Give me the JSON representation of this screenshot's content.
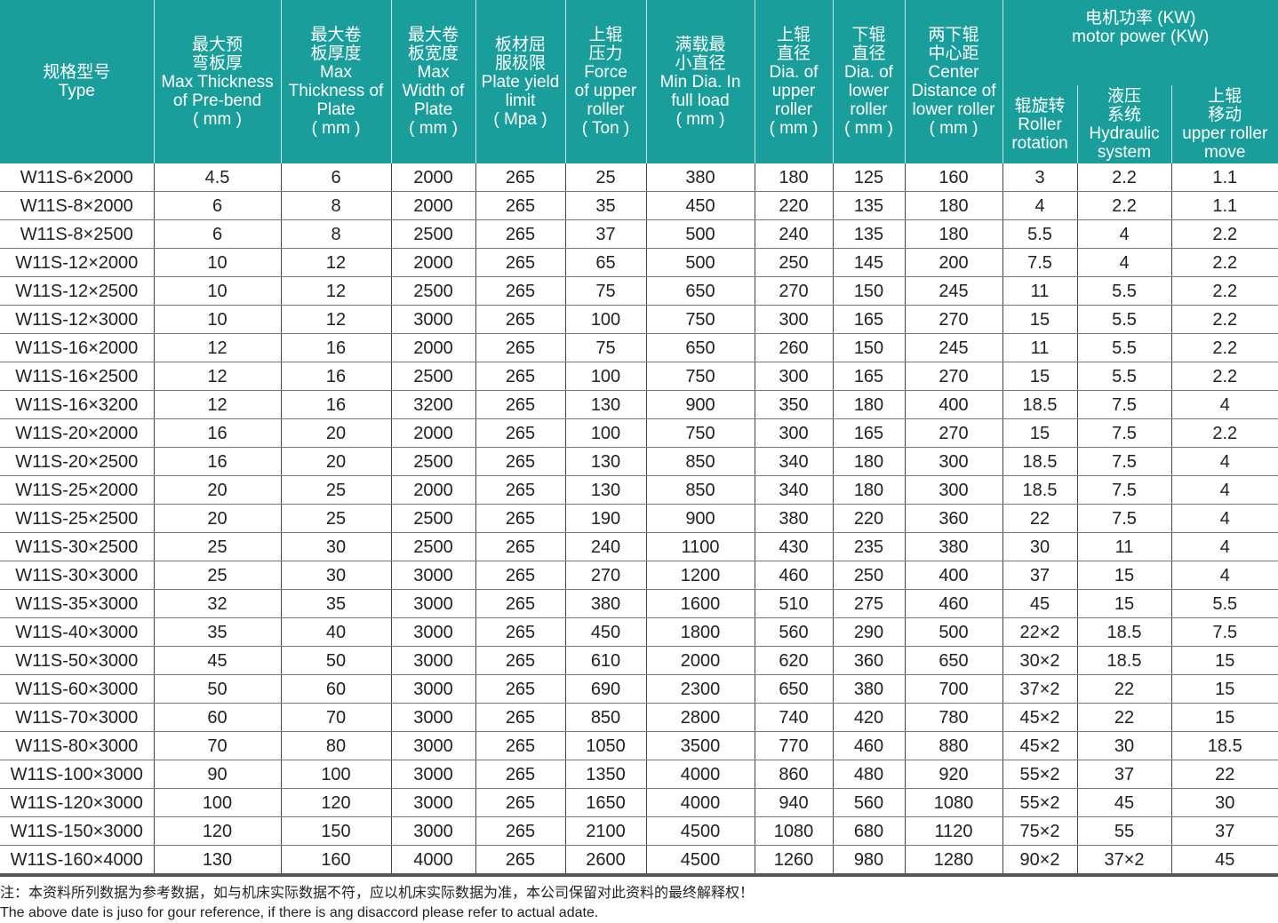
{
  "header_color": "#1a9e9b",
  "columns": {
    "type": [
      "规格型号",
      "Type"
    ],
    "prebend": [
      "最大预",
      "弯板厚",
      "Max Thickness",
      "of Pre-bend",
      "( mm )"
    ],
    "thickness": [
      "最大卷",
      "板厚度",
      "Max",
      "Thickness of",
      "Plate",
      "( mm )"
    ],
    "width": [
      "最大卷",
      "板宽度",
      "Max",
      "Width of",
      "Plate",
      "( mm )"
    ],
    "yield": [
      "板材屈",
      "服极限",
      "Plate yield",
      "limit",
      "( Mpa )"
    ],
    "force": [
      "上辊",
      "压力",
      "Force",
      "of upper",
      "roller",
      "( Ton )"
    ],
    "mindia": [
      "满载最",
      "小直径",
      "Min Dia. In",
      "full load",
      "( mm )"
    ],
    "upper_dia": [
      "上辊",
      "直径",
      "Dia. of",
      "upper",
      "roller",
      "( mm )"
    ],
    "lower_dia": [
      "下辊",
      "直径",
      "Dia. of",
      "lower",
      "roller",
      "( mm )"
    ],
    "center": [
      "两下辊",
      "中心距",
      "Center",
      "Distance of",
      "lower roller",
      "( mm )"
    ],
    "motor_group": [
      "电机功率  (KW)",
      "motor power (KW)"
    ],
    "roller_rotation": [
      "辊旋转",
      "Roller",
      "rotation"
    ],
    "hydraulic": [
      "液压",
      "系统",
      "Hydraulic",
      "system"
    ],
    "upper_move": [
      "上辊",
      "移动",
      "upper roller",
      "move"
    ]
  },
  "rows": [
    [
      "W11S-6×2000",
      "4.5",
      "6",
      "2000",
      "265",
      "25",
      "380",
      "180",
      "125",
      "160",
      "3",
      "2.2",
      "1.1"
    ],
    [
      "W11S-8×2000",
      "6",
      "8",
      "2000",
      "265",
      "35",
      "450",
      "220",
      "135",
      "180",
      "4",
      "2.2",
      "1.1"
    ],
    [
      "W11S-8×2500",
      "6",
      "8",
      "2500",
      "265",
      "37",
      "500",
      "240",
      "135",
      "180",
      "5.5",
      "4",
      "2.2"
    ],
    [
      "W11S-12×2000",
      "10",
      "12",
      "2000",
      "265",
      "65",
      "500",
      "250",
      "145",
      "200",
      "7.5",
      "4",
      "2.2"
    ],
    [
      "W11S-12×2500",
      "10",
      "12",
      "2500",
      "265",
      "75",
      "650",
      "270",
      "150",
      "245",
      "11",
      "5.5",
      "2.2"
    ],
    [
      "W11S-12×3000",
      "10",
      "12",
      "3000",
      "265",
      "100",
      "750",
      "300",
      "165",
      "270",
      "15",
      "5.5",
      "2.2"
    ],
    [
      "W11S-16×2000",
      "12",
      "16",
      "2000",
      "265",
      "75",
      "650",
      "260",
      "150",
      "245",
      "11",
      "5.5",
      "2.2"
    ],
    [
      "W11S-16×2500",
      "12",
      "16",
      "2500",
      "265",
      "100",
      "750",
      "300",
      "165",
      "270",
      "15",
      "5.5",
      "2.2"
    ],
    [
      "W11S-16×3200",
      "12",
      "16",
      "3200",
      "265",
      "130",
      "900",
      "350",
      "180",
      "400",
      "18.5",
      "7.5",
      "4"
    ],
    [
      "W11S-20×2000",
      "16",
      "20",
      "2000",
      "265",
      "100",
      "750",
      "300",
      "165",
      "270",
      "15",
      "7.5",
      "2.2"
    ],
    [
      "W11S-20×2500",
      "16",
      "20",
      "2500",
      "265",
      "130",
      "850",
      "340",
      "180",
      "300",
      "18.5",
      "7.5",
      "4"
    ],
    [
      "W11S-25×2000",
      "20",
      "25",
      "2000",
      "265",
      "130",
      "850",
      "340",
      "180",
      "300",
      "18.5",
      "7.5",
      "4"
    ],
    [
      "W11S-25×2500",
      "20",
      "25",
      "2500",
      "265",
      "190",
      "900",
      "380",
      "220",
      "360",
      "22",
      "7.5",
      "4"
    ],
    [
      "W11S-30×2500",
      "25",
      "30",
      "2500",
      "265",
      "240",
      "1100",
      "430",
      "235",
      "380",
      "30",
      "11",
      "4"
    ],
    [
      "W11S-30×3000",
      "25",
      "30",
      "3000",
      "265",
      "270",
      "1200",
      "460",
      "250",
      "400",
      "37",
      "15",
      "4"
    ],
    [
      "W11S-35×3000",
      "32",
      "35",
      "3000",
      "265",
      "380",
      "1600",
      "510",
      "275",
      "460",
      "45",
      "15",
      "5.5"
    ],
    [
      "W11S-40×3000",
      "35",
      "40",
      "3000",
      "265",
      "450",
      "1800",
      "560",
      "290",
      "500",
      "22×2",
      "18.5",
      "7.5"
    ],
    [
      "W11S-50×3000",
      "45",
      "50",
      "3000",
      "265",
      "610",
      "2000",
      "620",
      "360",
      "650",
      "30×2",
      "18.5",
      "15"
    ],
    [
      "W11S-60×3000",
      "50",
      "60",
      "3000",
      "265",
      "690",
      "2300",
      "650",
      "380",
      "700",
      "37×2",
      "22",
      "15"
    ],
    [
      "W11S-70×3000",
      "60",
      "70",
      "3000",
      "265",
      "850",
      "2800",
      "740",
      "420",
      "780",
      "45×2",
      "22",
      "15"
    ],
    [
      "W11S-80×3000",
      "70",
      "80",
      "3000",
      "265",
      "1050",
      "3500",
      "770",
      "460",
      "880",
      "45×2",
      "30",
      "18.5"
    ],
    [
      "W11S-100×3000",
      "90",
      "100",
      "3000",
      "265",
      "1350",
      "4000",
      "860",
      "480",
      "920",
      "55×2",
      "37",
      "22"
    ],
    [
      "W11S-120×3000",
      "100",
      "120",
      "3000",
      "265",
      "1650",
      "4000",
      "940",
      "560",
      "1080",
      "55×2",
      "45",
      "30"
    ],
    [
      "W11S-150×3000",
      "120",
      "150",
      "3000",
      "265",
      "2100",
      "4500",
      "1080",
      "680",
      "1120",
      "75×2",
      "55",
      "37"
    ],
    [
      "W11S-160×4000",
      "130",
      "160",
      "4000",
      "265",
      "2600",
      "4500",
      "1260",
      "980",
      "1280",
      "90×2",
      "37×2",
      "45"
    ]
  ],
  "note": {
    "zh": "注：本资料所列数据为参考数据，如与机床实际数据不符，应以机床实际数据为准，本公司保留对此资料的最终解释权！",
    "en": "The above date is juso for gour reference, if there is ang disaccord please refer to actual adate."
  }
}
